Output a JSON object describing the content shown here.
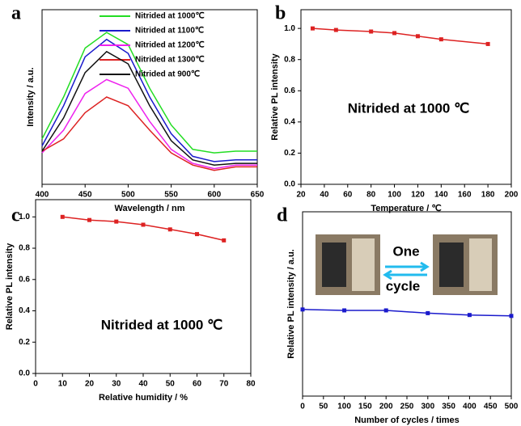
{
  "chart_data": [
    {
      "type": "line",
      "label": "a",
      "x": [
        400,
        425,
        450,
        475,
        500,
        525,
        550,
        575,
        600,
        625,
        650
      ],
      "xlim": [
        400,
        650
      ],
      "xticks": [
        400,
        450,
        500,
        550,
        600,
        650
      ],
      "ylim": [
        0,
        1
      ],
      "xlabel": "Wavelength / nm",
      "ylabel": "Intensity / a.u.",
      "legend": "upper right",
      "markers": false,
      "series": [
        {
          "name": "Nitrided at 1000℃",
          "color": "#22dd22",
          "values": [
            0.26,
            0.5,
            0.78,
            0.87,
            0.8,
            0.55,
            0.34,
            0.2,
            0.18,
            0.19,
            0.19
          ]
        },
        {
          "name": "Nitrided at 1100℃",
          "color": "#1a1acc",
          "values": [
            0.22,
            0.45,
            0.73,
            0.83,
            0.75,
            0.5,
            0.29,
            0.16,
            0.13,
            0.14,
            0.14
          ]
        },
        {
          "name": "Nitrided at 1200℃",
          "color": "#ee22ee",
          "values": [
            0.18,
            0.31,
            0.52,
            0.6,
            0.55,
            0.36,
            0.2,
            0.12,
            0.09,
            0.11,
            0.11
          ]
        },
        {
          "name": "Nitrided at 1300℃",
          "color": "#dd2222",
          "values": [
            0.19,
            0.26,
            0.41,
            0.5,
            0.45,
            0.31,
            0.18,
            0.11,
            0.08,
            0.1,
            0.1
          ]
        },
        {
          "name": "Nitrided at 900℃",
          "color": "#111111",
          "values": [
            0.19,
            0.38,
            0.64,
            0.76,
            0.69,
            0.45,
            0.25,
            0.14,
            0.11,
            0.12,
            0.12
          ]
        }
      ]
    },
    {
      "type": "line",
      "label": "b",
      "x": [
        30,
        50,
        80,
        100,
        120,
        140,
        180
      ],
      "values": [
        1.0,
        0.99,
        0.98,
        0.97,
        0.95,
        0.93,
        0.9
      ],
      "color": "#dd2222",
      "markers": true,
      "xlim": [
        20,
        200
      ],
      "xticks": [
        20,
        40,
        60,
        80,
        100,
        120,
        140,
        160,
        180,
        200
      ],
      "ylim": [
        0,
        1.12
      ],
      "yticks": [
        {
          "value": 0,
          "label": "0.0"
        },
        0.2,
        0.4,
        0.6,
        0.8,
        {
          "value": 1,
          "label": "1.0"
        }
      ],
      "xlabel": "Temperature / ℃",
      "ylabel": "Relative PL intensity",
      "annotations": [
        "Nitrided at 1000 ℃"
      ]
    },
    {
      "type": "line",
      "label": "c",
      "x": [
        10,
        20,
        30,
        40,
        50,
        60,
        70
      ],
      "values": [
        1.0,
        0.98,
        0.97,
        0.95,
        0.92,
        0.89,
        0.85
      ],
      "color": "#dd2222",
      "markers": true,
      "xlim": [
        0,
        80
      ],
      "xticks": [
        0,
        10,
        20,
        30,
        40,
        50,
        60,
        70,
        80
      ],
      "ylim": [
        0,
        1.11
      ],
      "yticks": [
        {
          "value": 0,
          "label": "0.0"
        },
        0.2,
        0.4,
        0.6,
        0.8,
        {
          "value": 1,
          "label": "1.0"
        }
      ],
      "xlabel": "Relative humidity / %",
      "ylabel": "Relative PL intensity",
      "annotations": [
        "Nitrided at 1000 ℃"
      ]
    },
    {
      "type": "line",
      "label": "d",
      "x": [
        0,
        100,
        200,
        300,
        400,
        500
      ],
      "values": [
        0.47,
        0.465,
        0.465,
        0.45,
        0.44,
        0.435
      ],
      "color": "#1a1acc",
      "markers": true,
      "xlim": [
        0,
        500
      ],
      "xticks": [
        0,
        50,
        100,
        150,
        200,
        250,
        300,
        350,
        400,
        450,
        500
      ],
      "ylim": [
        0,
        1
      ],
      "xlabel": "Number of cycles / times",
      "ylabel": "Relative PL intensity / a.u.",
      "annotations": [
        "One",
        "cycle"
      ]
    }
  ]
}
